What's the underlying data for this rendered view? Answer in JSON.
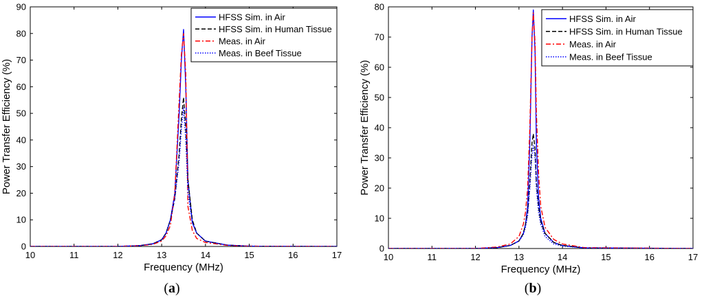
{
  "figure": {
    "captions": [
      {
        "open": "(",
        "letter": "a",
        "close": ")"
      },
      {
        "open": "(",
        "letter": "b",
        "close": ")"
      }
    ]
  },
  "chart_data": [
    {
      "type": "line",
      "xlabel": "Frequency (MHz)",
      "ylabel": "Power Transfer Efficiency (%)",
      "xlim": [
        10,
        17
      ],
      "ylim": [
        0,
        90
      ],
      "xticks": [
        10,
        11,
        12,
        13,
        14,
        15,
        16,
        17
      ],
      "yticks": [
        0,
        10,
        20,
        30,
        40,
        50,
        60,
        70,
        80,
        90
      ],
      "legend_position": "top-right",
      "series": [
        {
          "name": "HFSS Sim. in Air",
          "color": "#0000ff",
          "dash": "solid",
          "x": [
            10,
            12,
            12.5,
            12.8,
            13.0,
            13.1,
            13.2,
            13.3,
            13.4,
            13.45,
            13.5,
            13.55,
            13.6,
            13.7,
            13.8,
            14.0,
            14.5,
            15,
            17
          ],
          "y": [
            0,
            0,
            0.3,
            1,
            2.5,
            5,
            10,
            20,
            50,
            70,
            81.5,
            60,
            25,
            9,
            5,
            2,
            0.5,
            0.1,
            0
          ]
        },
        {
          "name": "HFSS Sim. in Human Tissue",
          "color": "#000000",
          "dash": "dashed",
          "x": [
            10,
            12,
            12.5,
            12.8,
            13.0,
            13.1,
            13.2,
            13.3,
            13.4,
            13.45,
            13.5,
            13.55,
            13.6,
            13.7,
            13.8,
            14.0,
            14.5,
            15,
            17
          ],
          "y": [
            0,
            0,
            0.3,
            1,
            2.5,
            5,
            10,
            18,
            35,
            48,
            56,
            45,
            25,
            10,
            5,
            2,
            0.5,
            0.1,
            0
          ]
        },
        {
          "name": "Meas. in Air",
          "color": "#ff0000",
          "dash": "dashdot",
          "x": [
            10,
            12,
            12.5,
            12.8,
            13.0,
            13.1,
            13.2,
            13.3,
            13.4,
            13.45,
            13.5,
            13.55,
            13.6,
            13.7,
            13.8,
            14.0,
            14.5,
            15,
            17
          ],
          "y": [
            0,
            0,
            0.3,
            0.8,
            2,
            4,
            8,
            20,
            55,
            72,
            80,
            65,
            15,
            6,
            3,
            1.5,
            0.4,
            0.1,
            0
          ]
        },
        {
          "name": "Meas. in Beef Tissue",
          "color": "#0000ff",
          "dash": "dotted",
          "x": [
            10,
            12,
            12.5,
            12.8,
            13.0,
            13.1,
            13.2,
            13.3,
            13.4,
            13.45,
            13.5,
            13.55,
            13.6,
            13.7,
            13.8,
            14.0,
            14.5,
            15,
            17
          ],
          "y": [
            0,
            0,
            0.3,
            1,
            2.5,
            5,
            10,
            18,
            32,
            44,
            52,
            40,
            20,
            9,
            5,
            2,
            0.5,
            0.1,
            0
          ]
        }
      ]
    },
    {
      "type": "line",
      "xlabel": "Frequency (MHz)",
      "ylabel": "Power Transfer Efficiency (%)",
      "xlim": [
        10,
        17
      ],
      "ylim": [
        0,
        80
      ],
      "xticks": [
        10,
        11,
        12,
        13,
        14,
        15,
        16,
        17
      ],
      "yticks": [
        0,
        10,
        20,
        30,
        40,
        50,
        60,
        70,
        80
      ],
      "legend_position": "top-right",
      "series": [
        {
          "name": "HFSS Sim. in Air",
          "color": "#0000ff",
          "dash": "solid",
          "x": [
            10,
            12,
            12.5,
            12.8,
            13.0,
            13.1,
            13.15,
            13.2,
            13.25,
            13.3,
            13.33,
            13.37,
            13.4,
            13.45,
            13.5,
            13.6,
            13.8,
            14.0,
            14.5,
            17
          ],
          "y": [
            0,
            0,
            0.3,
            1,
            2.5,
            5,
            8,
            14,
            35,
            70,
            79,
            65,
            35,
            17,
            10,
            5,
            2,
            1,
            0.2,
            0
          ]
        },
        {
          "name": "HFSS Sim. in Human Tissue",
          "color": "#000000",
          "dash": "dashed",
          "x": [
            10,
            12,
            12.5,
            12.8,
            13.0,
            13.1,
            13.15,
            13.2,
            13.25,
            13.3,
            13.33,
            13.37,
            13.4,
            13.45,
            13.5,
            13.6,
            13.8,
            14.0,
            14.5,
            17
          ],
          "y": [
            0,
            0,
            0.3,
            1,
            2.5,
            5,
            8,
            12,
            22,
            35,
            38,
            33,
            22,
            14,
            9,
            5,
            2,
            1,
            0.2,
            0
          ]
        },
        {
          "name": "Meas. in Air",
          "color": "#ff0000",
          "dash": "dashdot",
          "x": [
            10,
            12,
            12.5,
            12.8,
            13.0,
            13.1,
            13.15,
            13.2,
            13.25,
            13.3,
            13.33,
            13.37,
            13.4,
            13.45,
            13.5,
            13.6,
            13.8,
            14.0,
            14.5,
            17
          ],
          "y": [
            0,
            0,
            0.5,
            1.5,
            4,
            8,
            12,
            20,
            40,
            70,
            78,
            68,
            45,
            25,
            14,
            7,
            3,
            1.5,
            0.3,
            0
          ]
        },
        {
          "name": "Meas. in Beef Tissue",
          "color": "#0000ff",
          "dash": "dotted",
          "x": [
            10,
            12,
            12.5,
            12.8,
            13.0,
            13.1,
            13.15,
            13.2,
            13.25,
            13.3,
            13.33,
            13.37,
            13.4,
            13.45,
            13.5,
            13.6,
            13.8,
            14.0,
            14.5,
            17
          ],
          "y": [
            0,
            0,
            0.3,
            1,
            2.5,
            4.5,
            7,
            11,
            20,
            31,
            34,
            30,
            20,
            12,
            8,
            4,
            1.5,
            0.8,
            0.2,
            0
          ]
        }
      ]
    }
  ]
}
